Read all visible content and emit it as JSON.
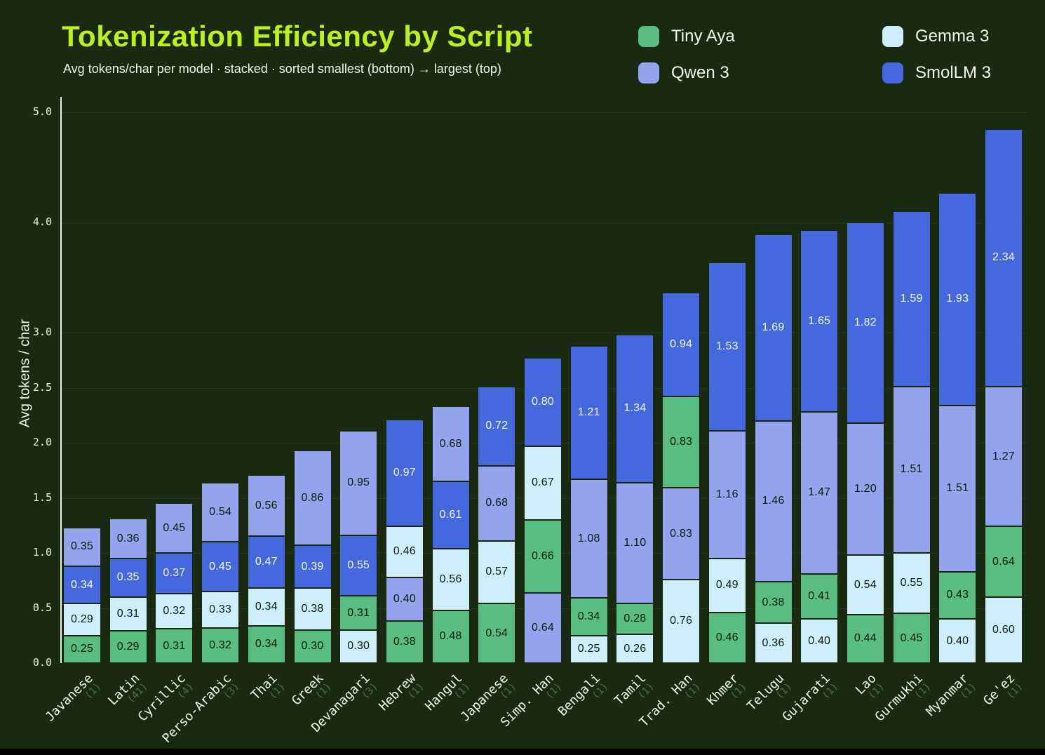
{
  "title": "Tokenization Efficiency by Script",
  "subtitle": "Avg tokens/char per model · stacked · sorted smallest (bottom) → largest (top)",
  "colors": {
    "background": "#1a2a11",
    "title_accent": "#bdf01a",
    "text": "#f1f5ec",
    "count_text": "#4d6f45",
    "axis_line": "#edf2e6",
    "tiny_aya": "#59bc81",
    "gemma_3": "#cfeefc",
    "qwen_3": "#93a3ee",
    "smollm_3": "#4668df"
  },
  "legend": [
    {
      "label": "Tiny Aya",
      "color": "#59bc81",
      "text_color": "#0e1b08"
    },
    {
      "label": "Gemma 3",
      "color": "#cfeefc",
      "text_color": "#0e1b08"
    },
    {
      "label": "Qwen 3",
      "color": "#93a3ee",
      "text_color": "#0e1b08"
    },
    {
      "label": "SmolLM 3",
      "color": "#4668df",
      "text_color": "#f5f8f1"
    }
  ],
  "chart_data": {
    "type": "bar",
    "stacked": true,
    "title": "Tokenization Efficiency by Script",
    "xlabel": "",
    "ylabel": "Avg tokens / char",
    "ylim": [
      0,
      5.0
    ],
    "yticks": [
      0.0,
      0.5,
      1.0,
      1.5,
      2.0,
      2.5,
      3.0,
      4.0,
      5.0
    ],
    "grid": true,
    "legend_position": "top-right",
    "series_names": [
      "Tiny Aya",
      "Gemma 3",
      "Qwen 3",
      "SmolLM 3"
    ],
    "note": "segments listed bottom to top; each bar stacks models sorted smallest (bottom) to largest (top)",
    "categories": [
      "Javanese",
      "Latin",
      "Cyrillic",
      "Perso-Arabic",
      "Thai",
      "Greek",
      "Devanagari",
      "Hebrew",
      "Hangul",
      "Japanese",
      "Simp. Han",
      "Bengali",
      "Tamil",
      "Trad. Han",
      "Khmer",
      "Telugu",
      "Gujarati",
      "Lao",
      "Gurmukhi",
      "Myanmar",
      "Ge'ez"
    ],
    "counts": [
      1,
      41,
      4,
      3,
      1,
      1,
      3,
      1,
      1,
      1,
      1,
      1,
      1,
      1,
      1,
      1,
      1,
      1,
      1,
      1,
      1
    ],
    "bars": [
      {
        "script": "Javanese",
        "count": 1,
        "segments": [
          {
            "model": "Tiny Aya",
            "value": 0.25
          },
          {
            "model": "Gemma 3",
            "value": 0.29
          },
          {
            "model": "SmolLM 3",
            "value": 0.34
          },
          {
            "model": "Qwen 3",
            "value": 0.35
          }
        ]
      },
      {
        "script": "Latin",
        "count": 41,
        "segments": [
          {
            "model": "Tiny Aya",
            "value": 0.29
          },
          {
            "model": "Gemma 3",
            "value": 0.31
          },
          {
            "model": "SmolLM 3",
            "value": 0.35
          },
          {
            "model": "Qwen 3",
            "value": 0.36
          }
        ]
      },
      {
        "script": "Cyrillic",
        "count": 4,
        "segments": [
          {
            "model": "Tiny Aya",
            "value": 0.31
          },
          {
            "model": "Gemma 3",
            "value": 0.32
          },
          {
            "model": "SmolLM 3",
            "value": 0.37
          },
          {
            "model": "Qwen 3",
            "value": 0.45
          }
        ]
      },
      {
        "script": "Perso-Arabic",
        "count": 3,
        "segments": [
          {
            "model": "Tiny Aya",
            "value": 0.32
          },
          {
            "model": "Gemma 3",
            "value": 0.33
          },
          {
            "model": "SmolLM 3",
            "value": 0.45
          },
          {
            "model": "Qwen 3",
            "value": 0.54
          }
        ]
      },
      {
        "script": "Thai",
        "count": 1,
        "segments": [
          {
            "model": "Tiny Aya",
            "value": 0.34
          },
          {
            "model": "Gemma 3",
            "value": 0.34
          },
          {
            "model": "SmolLM 3",
            "value": 0.47
          },
          {
            "model": "Qwen 3",
            "value": 0.56
          }
        ]
      },
      {
        "script": "Greek",
        "count": 1,
        "segments": [
          {
            "model": "Tiny Aya",
            "value": 0.3
          },
          {
            "model": "Gemma 3",
            "value": 0.38
          },
          {
            "model": "SmolLM 3",
            "value": 0.39
          },
          {
            "model": "Qwen 3",
            "value": 0.86
          }
        ]
      },
      {
        "script": "Devanagari",
        "count": 3,
        "segments": [
          {
            "model": "Gemma 3",
            "value": 0.3
          },
          {
            "model": "Tiny Aya",
            "value": 0.31
          },
          {
            "model": "SmolLM 3",
            "value": 0.55
          },
          {
            "model": "Qwen 3",
            "value": 0.95
          }
        ]
      },
      {
        "script": "Hebrew",
        "count": 1,
        "segments": [
          {
            "model": "Tiny Aya",
            "value": 0.38
          },
          {
            "model": "Qwen 3",
            "value": 0.4
          },
          {
            "model": "Gemma 3",
            "value": 0.46
          },
          {
            "model": "SmolLM 3",
            "value": 0.97
          }
        ]
      },
      {
        "script": "Hangul",
        "count": 1,
        "segments": [
          {
            "model": "Tiny Aya",
            "value": 0.48
          },
          {
            "model": "Gemma 3",
            "value": 0.56
          },
          {
            "model": "SmolLM 3",
            "value": 0.61
          },
          {
            "model": "Qwen 3",
            "value": 0.68
          }
        ]
      },
      {
        "script": "Japanese",
        "count": 1,
        "segments": [
          {
            "model": "Tiny Aya",
            "value": 0.54
          },
          {
            "model": "Gemma 3",
            "value": 0.57
          },
          {
            "model": "Qwen 3",
            "value": 0.68
          },
          {
            "model": "SmolLM 3",
            "value": 0.72
          }
        ]
      },
      {
        "script": "Simp. Han",
        "count": 1,
        "segments": [
          {
            "model": "Qwen 3",
            "value": 0.64
          },
          {
            "model": "Tiny Aya",
            "value": 0.66
          },
          {
            "model": "Gemma 3",
            "value": 0.67
          },
          {
            "model": "SmolLM 3",
            "value": 0.8
          }
        ]
      },
      {
        "script": "Bengali",
        "count": 1,
        "segments": [
          {
            "model": "Gemma 3",
            "value": 0.25
          },
          {
            "model": "Tiny Aya",
            "value": 0.34
          },
          {
            "model": "Qwen 3",
            "value": 1.08
          },
          {
            "model": "SmolLM 3",
            "value": 1.21
          }
        ]
      },
      {
        "script": "Tamil",
        "count": 1,
        "segments": [
          {
            "model": "Gemma 3",
            "value": 0.26
          },
          {
            "model": "Tiny Aya",
            "value": 0.28
          },
          {
            "model": "Qwen 3",
            "value": 1.1
          },
          {
            "model": "SmolLM 3",
            "value": 1.34
          }
        ]
      },
      {
        "script": "Trad. Han",
        "count": 1,
        "segments": [
          {
            "model": "Gemma 3",
            "value": 0.76
          },
          {
            "model": "Qwen 3",
            "value": 0.83
          },
          {
            "model": "Tiny Aya",
            "value": 0.83
          },
          {
            "model": "SmolLM 3",
            "value": 0.94
          }
        ]
      },
      {
        "script": "Khmer",
        "count": 1,
        "segments": [
          {
            "model": "Tiny Aya",
            "value": 0.46
          },
          {
            "model": "Gemma 3",
            "value": 0.49
          },
          {
            "model": "Qwen 3",
            "value": 1.16
          },
          {
            "model": "SmolLM 3",
            "value": 1.53
          }
        ]
      },
      {
        "script": "Telugu",
        "count": 1,
        "segments": [
          {
            "model": "Gemma 3",
            "value": 0.36
          },
          {
            "model": "Tiny Aya",
            "value": 0.38
          },
          {
            "model": "Qwen 3",
            "value": 1.46
          },
          {
            "model": "SmolLM 3",
            "value": 1.69
          }
        ]
      },
      {
        "script": "Gujarati",
        "count": 1,
        "segments": [
          {
            "model": "Gemma 3",
            "value": 0.4
          },
          {
            "model": "Tiny Aya",
            "value": 0.41
          },
          {
            "model": "Qwen 3",
            "value": 1.47
          },
          {
            "model": "SmolLM 3",
            "value": 1.65
          }
        ]
      },
      {
        "script": "Lao",
        "count": 1,
        "segments": [
          {
            "model": "Tiny Aya",
            "value": 0.44
          },
          {
            "model": "Gemma 3",
            "value": 0.54
          },
          {
            "model": "Qwen 3",
            "value": 1.2
          },
          {
            "model": "SmolLM 3",
            "value": 1.82
          }
        ]
      },
      {
        "script": "Gurmukhi",
        "count": 1,
        "segments": [
          {
            "model": "Tiny Aya",
            "value": 0.45
          },
          {
            "model": "Gemma 3",
            "value": 0.55
          },
          {
            "model": "Qwen 3",
            "value": 1.51
          },
          {
            "model": "SmolLM 3",
            "value": 1.59
          }
        ]
      },
      {
        "script": "Myanmar",
        "count": 1,
        "segments": [
          {
            "model": "Gemma 3",
            "value": 0.4
          },
          {
            "model": "Tiny Aya",
            "value": 0.43
          },
          {
            "model": "Qwen 3",
            "value": 1.51
          },
          {
            "model": "SmolLM 3",
            "value": 1.93
          }
        ]
      },
      {
        "script": "Ge'ez",
        "count": 1,
        "segments": [
          {
            "model": "Gemma 3",
            "value": 0.6
          },
          {
            "model": "Tiny Aya",
            "value": 0.64
          },
          {
            "model": "Qwen 3",
            "value": 1.27
          },
          {
            "model": "SmolLM 3",
            "value": 2.34
          }
        ]
      }
    ]
  }
}
